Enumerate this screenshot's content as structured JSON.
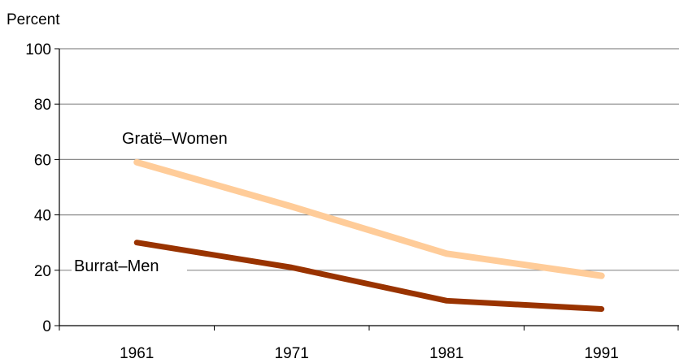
{
  "chart_data": {
    "type": "line",
    "title": "",
    "ylabel": "Percent",
    "xlabel": "",
    "x": [
      "1961",
      "1971",
      "1981",
      "1991"
    ],
    "ylim": [
      0,
      100
    ],
    "yticks": [
      "0",
      "20",
      "40",
      "60",
      "80",
      "100"
    ],
    "grid": true,
    "legend": "none",
    "series": [
      {
        "name": "Gratë–Women",
        "values": [
          59,
          43,
          26,
          18
        ],
        "color": "#FFCC99"
      },
      {
        "name": "Burrat–Men",
        "values": [
          30,
          21,
          9,
          6
        ],
        "color": "#993300"
      }
    ]
  }
}
